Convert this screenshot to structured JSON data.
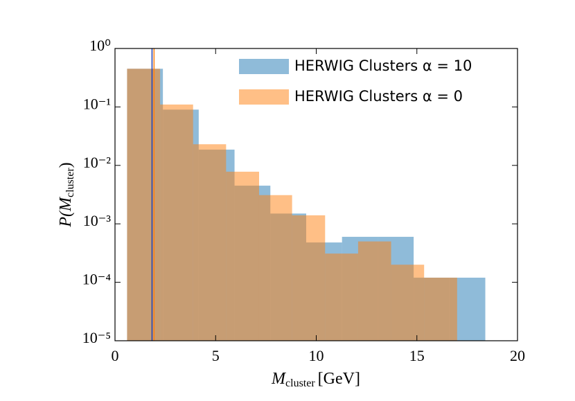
{
  "chart_data": {
    "type": "histogram",
    "ylabel": [
      "P(M",
      "cluster",
      ")"
    ],
    "xlabel": [
      "M",
      "cluster",
      "[GeV]"
    ],
    "xlim": [
      0,
      20
    ],
    "xticks": [
      0,
      5,
      10,
      15,
      20
    ],
    "ylim": [
      1e-05,
      1
    ],
    "log_y": true,
    "yticks": [
      {
        "value": 1,
        "label": "10⁰"
      },
      {
        "value": 0.1,
        "label": "10⁻¹"
      },
      {
        "value": 0.01,
        "label": "10⁻²"
      },
      {
        "value": 0.001,
        "label": "10⁻³"
      },
      {
        "value": 0.0001,
        "label": "10⁻⁴"
      },
      {
        "value": 1e-05,
        "label": "10⁻⁵"
      }
    ],
    "legend": "upper right",
    "series": [
      {
        "name": "HERWIG Clusters α = 10",
        "color": "#1f77b4",
        "bins": [
          0.6,
          2.38,
          4.16,
          5.94,
          7.72,
          9.5,
          11.28,
          13.06,
          14.84,
          16.62,
          18.4
        ],
        "values": [
          0.45,
          0.09,
          0.0186,
          0.0045,
          0.0015,
          0.00048,
          0.0006,
          0.0006,
          0.00012,
          0.00012
        ]
      },
      {
        "name": "HERWIG Clusters α = 0",
        "color": "#ff7f0e",
        "bins": [
          0.6,
          2.24,
          3.88,
          5.52,
          7.16,
          8.8,
          10.44,
          12.08,
          13.72,
          15.36,
          17.0
        ],
        "values": [
          0.45,
          0.11,
          0.023,
          0.0078,
          0.0031,
          0.0014,
          0.00031,
          0.0005,
          0.0002,
          0.00012
        ]
      }
    ],
    "vlines": [
      {
        "x": 1.84,
        "color": "#1f3fb4"
      },
      {
        "x": 1.94,
        "color": "#ff7f0e"
      }
    ]
  }
}
